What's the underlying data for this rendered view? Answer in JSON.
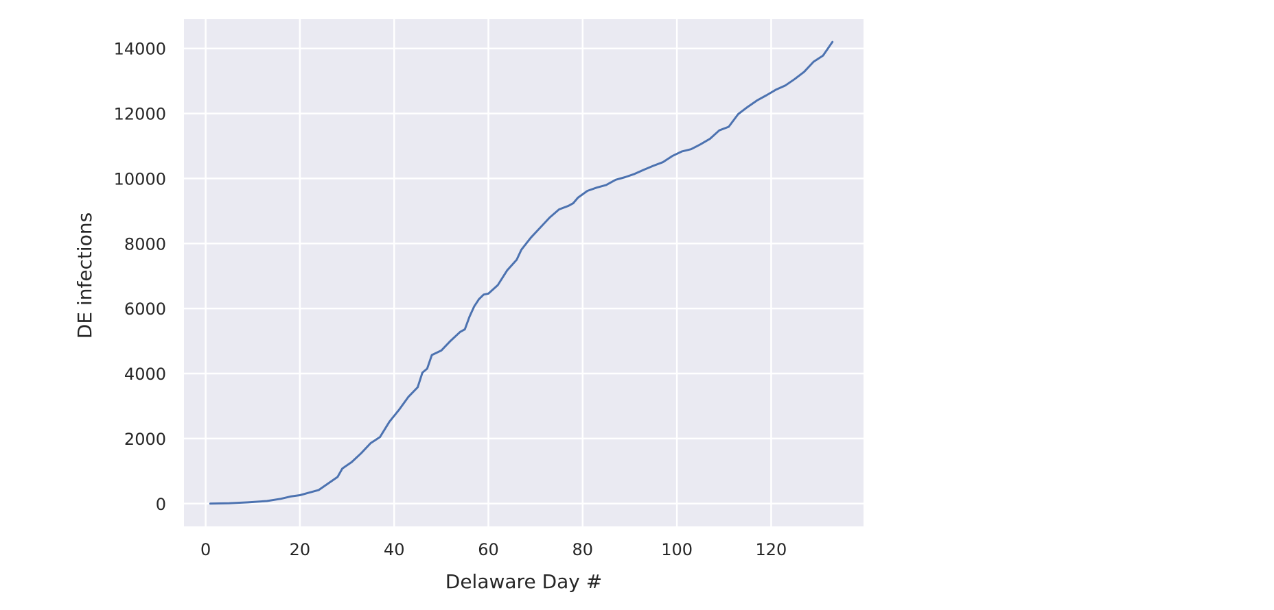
{
  "chart_data": {
    "type": "line",
    "title": "",
    "xlabel": "Delaware Day #",
    "ylabel": "DE infections",
    "xlim": [
      -4.6,
      139.6
    ],
    "ylim": [
      -700,
      14900
    ],
    "grid": true,
    "style": {
      "plot_background": "#eaeaf2",
      "grid_color": "#ffffff",
      "line_color": "#4c72b0",
      "text_color": "#262626"
    },
    "x_ticks": [
      0,
      20,
      40,
      60,
      80,
      100,
      120
    ],
    "x_tick_labels": [
      "0",
      "20",
      "40",
      "60",
      "80",
      "100",
      "120"
    ],
    "y_ticks": [
      0,
      2000,
      4000,
      6000,
      8000,
      10000,
      12000,
      14000
    ],
    "y_tick_labels": [
      "0",
      "2000",
      "4000",
      "6000",
      "8000",
      "10000",
      "12000",
      "14000"
    ],
    "series": [
      {
        "x": [
          1,
          5,
          9,
          13,
          16,
          18,
          20,
          22,
          24,
          26,
          28,
          29,
          31,
          33,
          35,
          37,
          39,
          41,
          43,
          45,
          46,
          47,
          48,
          50,
          52,
          54,
          55,
          56,
          57,
          58,
          59,
          60,
          62,
          64,
          66,
          67,
          69,
          71,
          73,
          75,
          77,
          78,
          79,
          81,
          83,
          85,
          87,
          89,
          91,
          93,
          95,
          97,
          99,
          101,
          103,
          105,
          107,
          109,
          111,
          113,
          115,
          117,
          119,
          121,
          123,
          125,
          127,
          129,
          131,
          133
        ],
        "y": [
          0,
          10,
          40,
          80,
          150,
          220,
          260,
          340,
          420,
          620,
          820,
          1080,
          1280,
          1550,
          1860,
          2050,
          2520,
          2880,
          3280,
          3580,
          4030,
          4150,
          4570,
          4710,
          5010,
          5280,
          5360,
          5750,
          6070,
          6290,
          6430,
          6460,
          6720,
          7180,
          7500,
          7810,
          8180,
          8490,
          8800,
          9050,
          9160,
          9240,
          9410,
          9620,
          9720,
          9800,
          9960,
          10040,
          10140,
          10270,
          10390,
          10500,
          10690,
          10830,
          10900,
          11050,
          11220,
          11480,
          11590,
          11980,
          12200,
          12400,
          12560,
          12730,
          12860,
          13060,
          13280,
          13590,
          13780,
          14200
        ]
      }
    ]
  }
}
